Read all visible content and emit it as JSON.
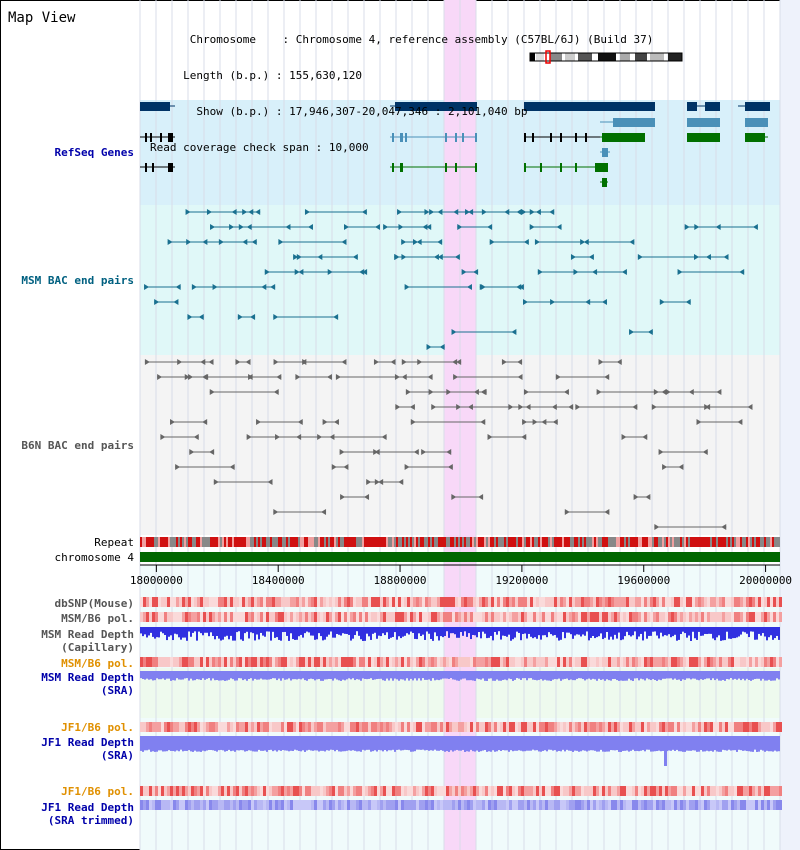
{
  "panel_title": "Map View",
  "info": {
    "chromosome_label": "Chromosome",
    "chromosome_value": "Chromosome 4, reference assembly (C57BL/6J) (Build 37)",
    "length_label": "Length (b.p.)",
    "length_value": "155,630,120",
    "show_label": "Show (b.p.)",
    "show_value": "17,946,307-20,047,346 : 2,101,040 bp",
    "coverage_label": "Read coverage check span",
    "coverage_value": "10,000"
  },
  "tracks": {
    "refseq": "RefSeq Genes",
    "msm_bac": "MSM BAC end pairs",
    "b6n_bac": "B6N BAC end pairs",
    "repeat": "Repeat",
    "chromosome": "chromosome 4",
    "dbsnp": "dbSNP(Mouse)",
    "msm_b6_pol": "MSM/B6 pol.",
    "msm_read_depth_cap_1": "MSM Read Depth",
    "msm_read_depth_cap_2": "(Capillary)",
    "msm_b6_pol_2": "MSM/B6 pol.",
    "msm_read_depth_sra_1": "MSM Read Depth",
    "msm_read_depth_sra_2": "(SRA)",
    "jf1_b6_pol": "JF1/B6 pol.",
    "jf1_read_depth_1": "JF1 Read Depth",
    "jf1_read_depth_2": "(SRA)",
    "jf1_b6_pol_2": "JF1/B6 pol.",
    "jf1_read_depth_tr_1": "JF1 Read Depth",
    "jf1_read_depth_tr_2": "(SRA trimmed)"
  },
  "axis": {
    "ticks": [
      {
        "value": 18000000,
        "label": "18000000"
      },
      {
        "value": 18400000,
        "label": "18400000"
      },
      {
        "value": 18800000,
        "label": "18800000"
      },
      {
        "value": 19200000,
        "label": "19200000"
      },
      {
        "value": 19600000,
        "label": "19600000"
      },
      {
        "value": 20000000,
        "label": "20000000"
      }
    ],
    "start": 17946307,
    "end": 20047346,
    "highlight": [
      18946000,
      19051000
    ]
  },
  "colors": {
    "refseq_label": "#0000aa",
    "msm_label": "#006080",
    "b6n_label": "#555555",
    "pol_label": "#e09000",
    "depth_label": "#0000aa",
    "highlight": "#f8d8f8",
    "refseq_bg": "#d8f0fa",
    "msm_bg": "#e0f8f8",
    "b6n_bg": "#f4f4f4",
    "gene_dark": "#003366",
    "gene_mid": "#4a90b8",
    "gene_green": "#007000",
    "chrom_green": "#006600",
    "depth_blue": "#3030e0",
    "depth_light": "#8080f0"
  }
}
